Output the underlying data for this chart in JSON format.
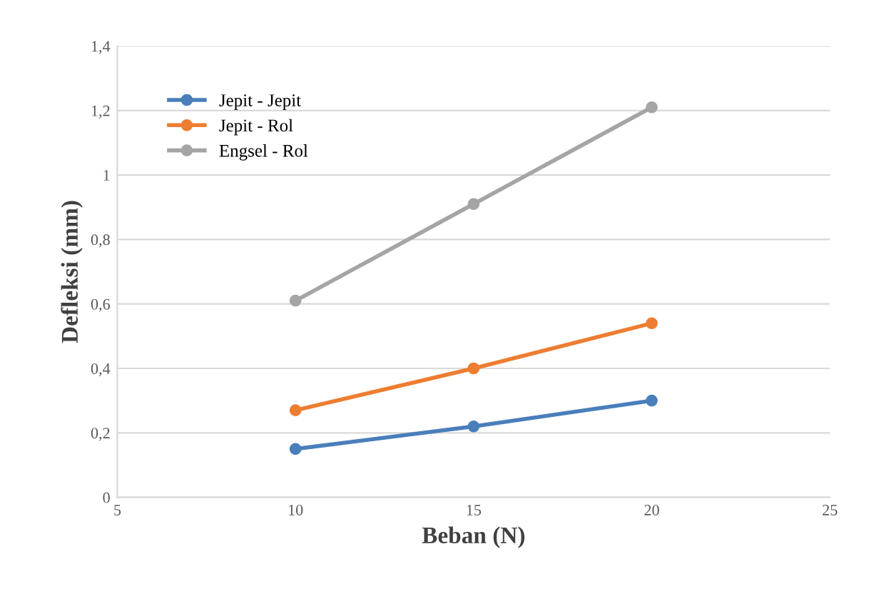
{
  "chart_data": {
    "type": "line",
    "xlabel": "Beban (N)",
    "ylabel": "Defleksi (mm)",
    "x": [
      10,
      15,
      20
    ],
    "series": [
      {
        "name": "Jepit - Jepit",
        "color": "#4a7ebb",
        "values": [
          0.15,
          0.22,
          0.3
        ]
      },
      {
        "name": "Jepit - Rol",
        "color": "#ed7d31",
        "values": [
          0.27,
          0.4,
          0.54
        ]
      },
      {
        "name": "Engsel - Rol",
        "color": "#a5a5a5",
        "values": [
          0.61,
          0.91,
          1.21
        ]
      }
    ],
    "xlim": [
      5,
      25
    ],
    "xticks": [
      5,
      10,
      15,
      20,
      25
    ],
    "ylim": [
      0,
      1.4
    ],
    "yticks": [
      0,
      {
        "value": 0.2,
        "label": "0,2"
      },
      {
        "value": 0.4,
        "label": "0,4"
      },
      {
        "value": 0.6,
        "label": "0,6"
      },
      {
        "value": 0.8,
        "label": "0,8"
      },
      1,
      {
        "value": 1.2,
        "label": "1,2"
      },
      {
        "value": 1.4,
        "label": "1,4"
      }
    ],
    "grid": "y",
    "legend": "top left",
    "marker": "circle",
    "line_style": "solid"
  }
}
